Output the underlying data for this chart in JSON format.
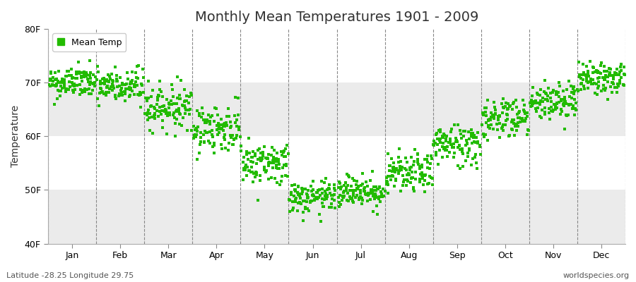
{
  "title": "Monthly Mean Temperatures 1901 - 2009",
  "ylabel": "Temperature",
  "xlabel_latitude": "Latitude -28.25 Longitude 29.75",
  "watermark": "worldspecies.org",
  "legend_label": "Mean Temp",
  "dot_color": "#22bb00",
  "bg_color": "#ffffff",
  "plot_bg_color": "#ffffff",
  "alt_band_color": "#ebebeb",
  "ylim": [
    40,
    80
  ],
  "yticks": [
    40,
    50,
    60,
    70,
    80
  ],
  "ytick_labels": [
    "40F",
    "50F",
    "60F",
    "70F",
    "80F"
  ],
  "months": [
    "Jan",
    "Feb",
    "Mar",
    "Apr",
    "May",
    "Jun",
    "Jul",
    "Aug",
    "Sep",
    "Oct",
    "Nov",
    "Dec"
  ],
  "month_means_F": [
    70.0,
    69.2,
    65.5,
    61.5,
    55.0,
    48.5,
    49.8,
    53.0,
    58.5,
    63.5,
    66.5,
    70.8
  ],
  "month_stds_F": [
    1.5,
    1.8,
    2.0,
    2.2,
    2.0,
    1.5,
    1.5,
    1.8,
    2.0,
    2.0,
    1.8,
    1.5
  ],
  "n_years": 109,
  "seed": 42,
  "marker_size": 5,
  "dpi": 100,
  "figsize": [
    9.0,
    4.0
  ]
}
